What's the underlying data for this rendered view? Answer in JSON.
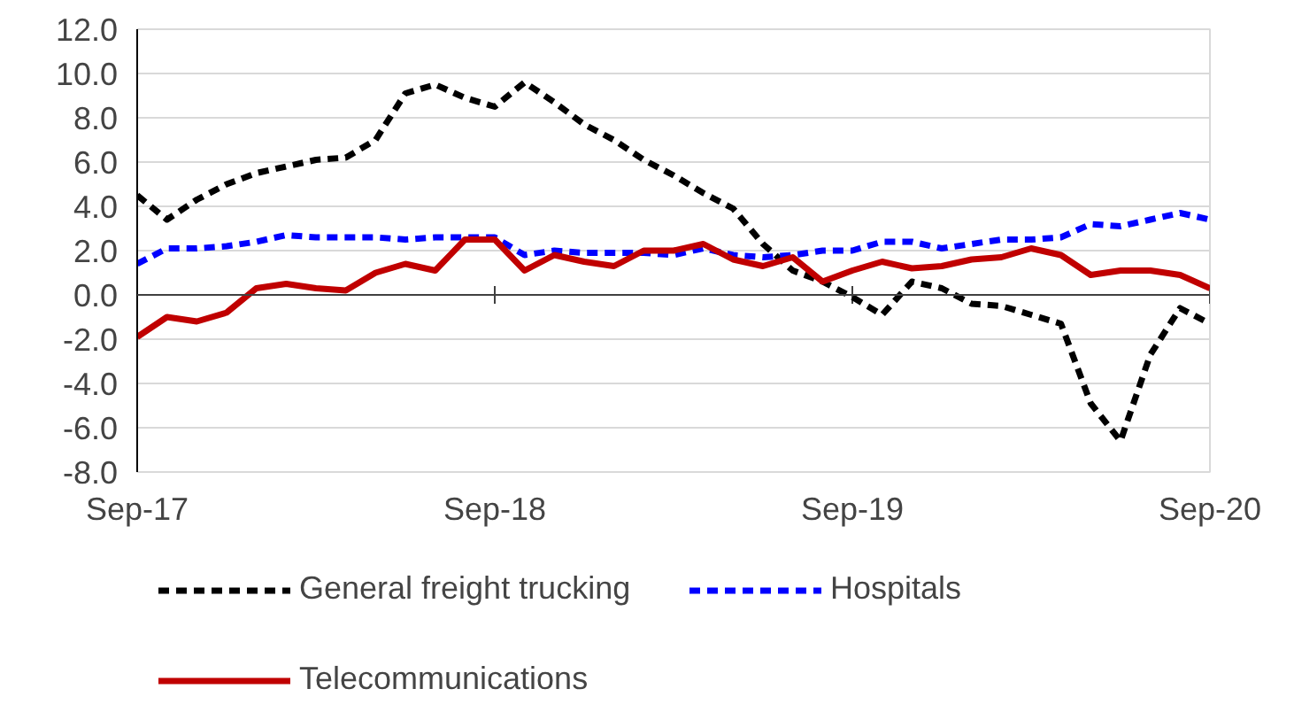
{
  "chart_data": {
    "type": "line",
    "categories": [
      "Sep-17",
      null,
      null,
      null,
      null,
      null,
      null,
      null,
      null,
      null,
      null,
      null,
      "Sep-18",
      null,
      null,
      null,
      null,
      null,
      null,
      null,
      null,
      null,
      null,
      null,
      "Sep-19",
      null,
      null,
      null,
      null,
      null,
      null,
      null,
      null,
      null,
      null,
      null,
      "Sep-20"
    ],
    "series": [
      {
        "name": "General freight trucking",
        "color": "#000000",
        "line_style": "dashed",
        "values": [
          4.5,
          3.4,
          4.3,
          5.0,
          5.5,
          5.8,
          6.1,
          6.2,
          7.0,
          9.1,
          9.5,
          8.9,
          8.5,
          9.6,
          8.7,
          7.7,
          7.0,
          6.1,
          5.4,
          4.6,
          3.9,
          2.3,
          1.1,
          0.6,
          -0.1,
          -0.9,
          0.6,
          0.3,
          -0.4,
          -0.5,
          -0.9,
          -1.3,
          -4.9,
          -6.6,
          -2.7,
          -0.6,
          -1.3
        ]
      },
      {
        "name": "Hospitals",
        "color": "#0000ff",
        "line_style": "dashed",
        "values": [
          1.4,
          2.1,
          2.1,
          2.2,
          2.4,
          2.7,
          2.6,
          2.6,
          2.6,
          2.5,
          2.6,
          2.6,
          2.6,
          1.8,
          2.0,
          1.9,
          1.9,
          1.9,
          1.8,
          2.1,
          1.8,
          1.7,
          1.8,
          2.0,
          2.0,
          2.4,
          2.4,
          2.1,
          2.3,
          2.5,
          2.5,
          2.6,
          3.2,
          3.1,
          3.4,
          3.7,
          3.4
        ]
      },
      {
        "name": "Telecommunications",
        "color": "#c00000",
        "line_style": "solid",
        "values": [
          -1.9,
          -1.0,
          -1.2,
          -0.8,
          0.3,
          0.5,
          0.3,
          0.2,
          1.0,
          1.4,
          1.1,
          2.5,
          2.5,
          1.1,
          1.8,
          1.5,
          1.3,
          2.0,
          2.0,
          2.3,
          1.6,
          1.3,
          1.7,
          0.6,
          1.1,
          1.5,
          1.2,
          1.3,
          1.6,
          1.7,
          2.1,
          1.8,
          0.9,
          1.1,
          1.1,
          0.9,
          0.3
        ]
      }
    ],
    "ylim": [
      -8,
      12
    ],
    "yticks": [
      {
        "value": -8,
        "label": "-8.0"
      },
      {
        "value": -6,
        "label": "-6.0"
      },
      {
        "value": -4,
        "label": "-4.0"
      },
      {
        "value": -2,
        "label": "-2.0"
      },
      {
        "value": 0,
        "label": "0.0"
      },
      {
        "value": 2,
        "label": "2.0"
      },
      {
        "value": 4,
        "label": "4.0"
      },
      {
        "value": 6,
        "label": "6.0"
      },
      {
        "value": 8,
        "label": "8.0"
      },
      {
        "value": 10,
        "label": "10.0"
      },
      {
        "value": 12,
        "label": "12.0"
      }
    ],
    "grid": "y",
    "legend": "bottom"
  }
}
